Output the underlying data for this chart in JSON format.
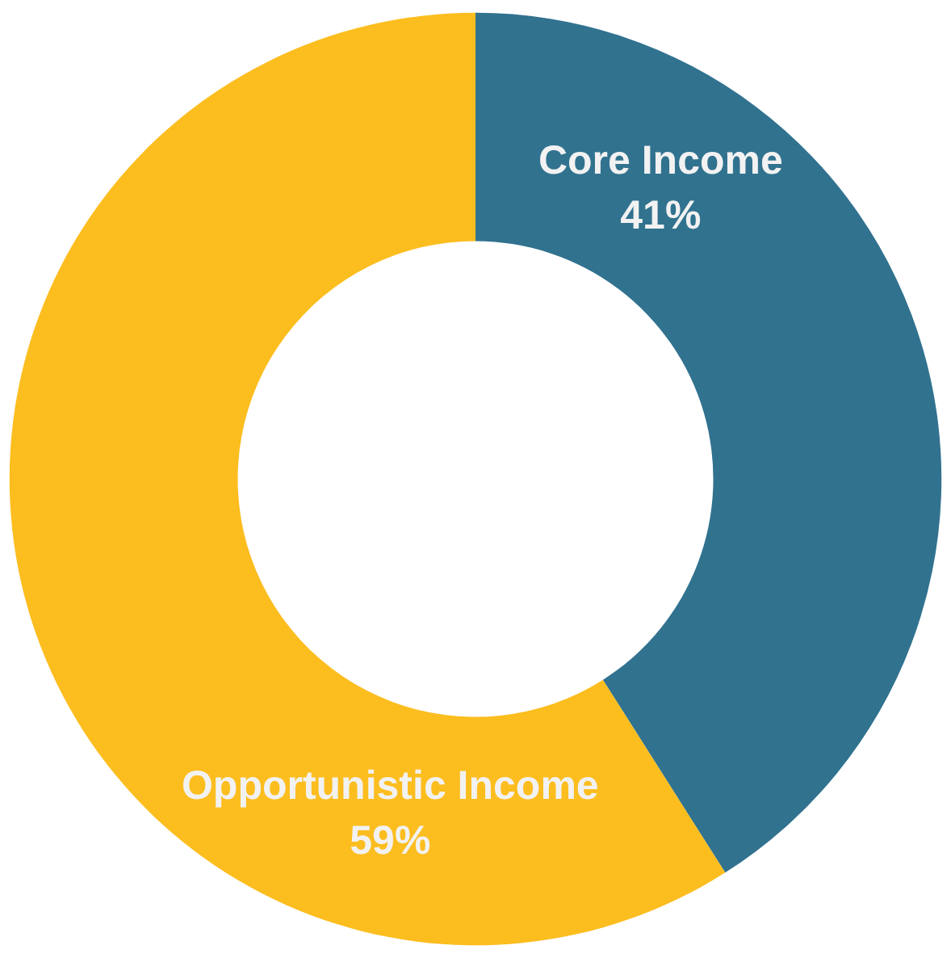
{
  "chart_data": {
    "type": "donut",
    "categories": [
      "Core Income",
      "Opportunistic Income"
    ],
    "values": [
      41,
      59
    ],
    "colors": [
      "#31728f",
      "#fcbd1f"
    ],
    "value_labels": [
      "41%",
      "59%"
    ]
  }
}
